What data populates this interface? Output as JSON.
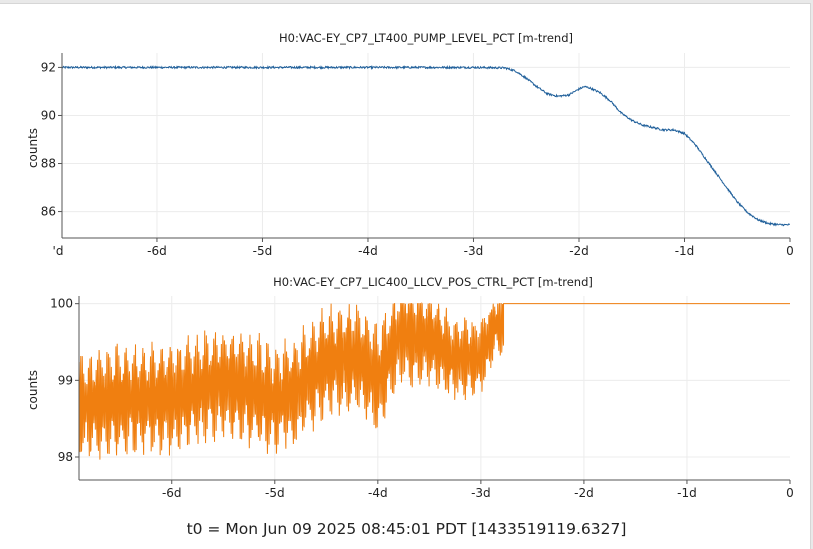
{
  "footer": {
    "t0_label": "t0 = Mon Jun 09 2025 08:45:01 PDT [1433519119.6327]"
  },
  "chart_data": [
    {
      "type": "line",
      "title": "H0:VAC-EY_CP7_LT400_PUMP_LEVEL_PCT [m-trend]",
      "ylabel": "counts",
      "xlim": [
        -6.9,
        0
      ],
      "ylim": [
        84.9,
        92.6
      ],
      "x_ticks": [
        -7,
        -6,
        -5,
        -4,
        -3,
        -2,
        -1,
        0
      ],
      "x_tick_labels": [
        "'d",
        "-6d",
        "-5d",
        "-4d",
        "-3d",
        "-2d",
        "-1d",
        "0"
      ],
      "y_ticks": [
        86,
        88,
        90,
        92
      ],
      "grid": true,
      "color": "#1f5f9a",
      "noise": 0.04,
      "series": [
        {
          "x": [
            -6.9,
            -6.5,
            -6.0,
            -5.0,
            -4.0,
            -3.0,
            -2.7,
            -2.6,
            -2.5,
            -2.4,
            -2.3,
            -2.2,
            -2.1,
            -2.0,
            -1.95,
            -1.9,
            -1.8,
            -1.7,
            -1.6,
            -1.5,
            -1.4,
            -1.3,
            -1.2,
            -1.1,
            -1.0,
            -0.9,
            -0.8,
            -0.7,
            -0.6,
            -0.5,
            -0.4,
            -0.3,
            -0.2,
            -0.1,
            0.0
          ],
          "y": [
            92.0,
            92.0,
            92.0,
            92.0,
            92.0,
            92.0,
            91.98,
            91.85,
            91.55,
            91.2,
            90.9,
            90.8,
            90.85,
            91.1,
            91.2,
            91.15,
            90.95,
            90.6,
            90.1,
            89.8,
            89.6,
            89.5,
            89.4,
            89.4,
            89.25,
            88.8,
            88.2,
            87.6,
            87.0,
            86.4,
            85.95,
            85.65,
            85.5,
            85.45,
            85.45
          ]
        }
      ]
    },
    {
      "type": "line",
      "title": "H0:VAC-EY_CP7_LIC400_LLCV_POS_CTRL_PCT [m-trend]",
      "ylabel": "counts",
      "xlim": [
        -6.9,
        0
      ],
      "ylim": [
        97.7,
        100.1
      ],
      "x_ticks": [
        -7,
        -6,
        -5,
        -4,
        -3,
        -2,
        -1,
        0
      ],
      "x_tick_labels": [
        "",
        "-6d",
        "-5d",
        "-4d",
        "-3d",
        "-2d",
        "-1d",
        "0"
      ],
      "y_ticks": [
        98,
        99,
        100
      ],
      "grid": true,
      "color": "#f07f10",
      "series": [
        {
          "oscillating_segment": {
            "x_start": -6.9,
            "x_end": -2.78,
            "center": [
              [
                -6.9,
                98.65
              ],
              [
                -6.5,
                98.75
              ],
              [
                -6.0,
                98.75
              ],
              [
                -5.5,
                99.0
              ],
              [
                -5.0,
                98.75
              ],
              [
                -4.8,
                98.85
              ],
              [
                -4.5,
                99.25
              ],
              [
                -4.2,
                99.3
              ],
              [
                -4.0,
                99.0
              ],
              [
                -3.8,
                99.6
              ],
              [
                -3.5,
                99.55
              ],
              [
                -3.3,
                99.3
              ],
              [
                -3.0,
                99.3
              ],
              [
                -2.85,
                99.75
              ]
            ],
            "amplitude": [
              [
                -6.9,
                0.6
              ],
              [
                -5.0,
                0.6
              ],
              [
                -4.0,
                0.6
              ],
              [
                -3.5,
                0.5
              ],
              [
                -2.8,
                0.35
              ]
            ],
            "max": 100.0,
            "min": 97.9
          },
          "flat_segment": {
            "x_start": -2.78,
            "x_end": 0.0,
            "y": 100.0
          }
        }
      ]
    }
  ]
}
